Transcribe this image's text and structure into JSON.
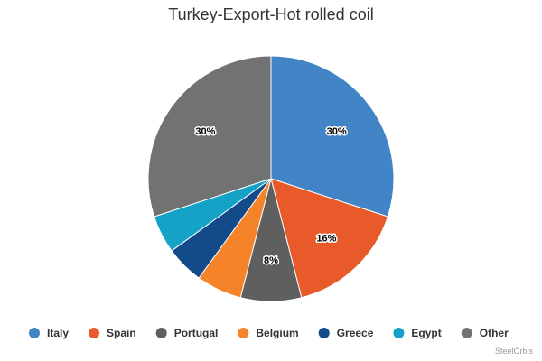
{
  "chart_data": {
    "type": "pie",
    "title": "Turkey-Export-Hot rolled coil",
    "categories": [
      "Italy",
      "Spain",
      "Portugal",
      "Belgium",
      "Greece",
      "Egypt",
      "Other"
    ],
    "values": [
      30,
      16,
      8,
      6,
      5,
      5,
      30
    ],
    "data_labels": [
      "30%",
      "16%",
      "8%",
      "",
      "",
      "",
      "30%"
    ],
    "colors": [
      "#4285c6",
      "#e85a2a",
      "#5f5f5f",
      "#f5832a",
      "#134b8a",
      "#14a3c7",
      "#727272"
    ],
    "legend_position": "bottom"
  },
  "credit": "SteelOrbis"
}
